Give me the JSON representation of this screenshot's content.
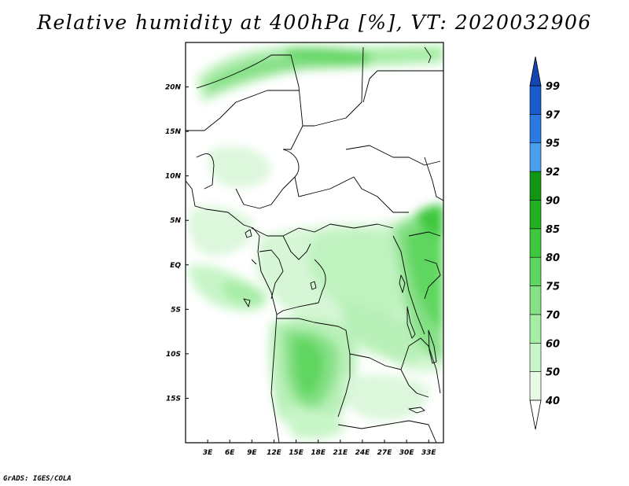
{
  "title": "Relative humidity at 400hPa [%], VT: 2020032906",
  "credit": "GrADS: IGES/COLA",
  "map": {
    "variable": "Relative humidity",
    "level": "400hPa",
    "units": "%",
    "valid_time": "2020032906",
    "lon_range": [
      0,
      35
    ],
    "lat_range": [
      -20,
      25
    ],
    "x_ticks": [
      {
        "value": 3,
        "label": "3E"
      },
      {
        "value": 6,
        "label": "6E"
      },
      {
        "value": 9,
        "label": "9E"
      },
      {
        "value": 12,
        "label": "12E"
      },
      {
        "value": 15,
        "label": "15E"
      },
      {
        "value": 18,
        "label": "18E"
      },
      {
        "value": 21,
        "label": "21E"
      },
      {
        "value": 24,
        "label": "24E"
      },
      {
        "value": 27,
        "label": "27E"
      },
      {
        "value": 30,
        "label": "30E"
      },
      {
        "value": 33,
        "label": "33E"
      }
    ],
    "y_ticks": [
      {
        "value": 20,
        "label": "20N"
      },
      {
        "value": 15,
        "label": "15N"
      },
      {
        "value": 10,
        "label": "10N"
      },
      {
        "value": 5,
        "label": "5N"
      },
      {
        "value": 0,
        "label": "EQ"
      },
      {
        "value": -5,
        "label": "5S"
      },
      {
        "value": -10,
        "label": "10S"
      },
      {
        "value": -15,
        "label": "15S"
      }
    ]
  },
  "colorbar": {
    "levels": [
      "40",
      "50",
      "60",
      "70",
      "75",
      "80",
      "85",
      "90",
      "92",
      "95",
      "97",
      "99"
    ],
    "colors": [
      "#ffffff",
      "#e6fae6",
      "#c8f5c8",
      "#a6eda6",
      "#84e284",
      "#5fd65f",
      "#3dc83d",
      "#22b022",
      "#119611",
      "#4a9eea",
      "#2a7ae0",
      "#1a5ccc",
      "#1346b0"
    ]
  }
}
